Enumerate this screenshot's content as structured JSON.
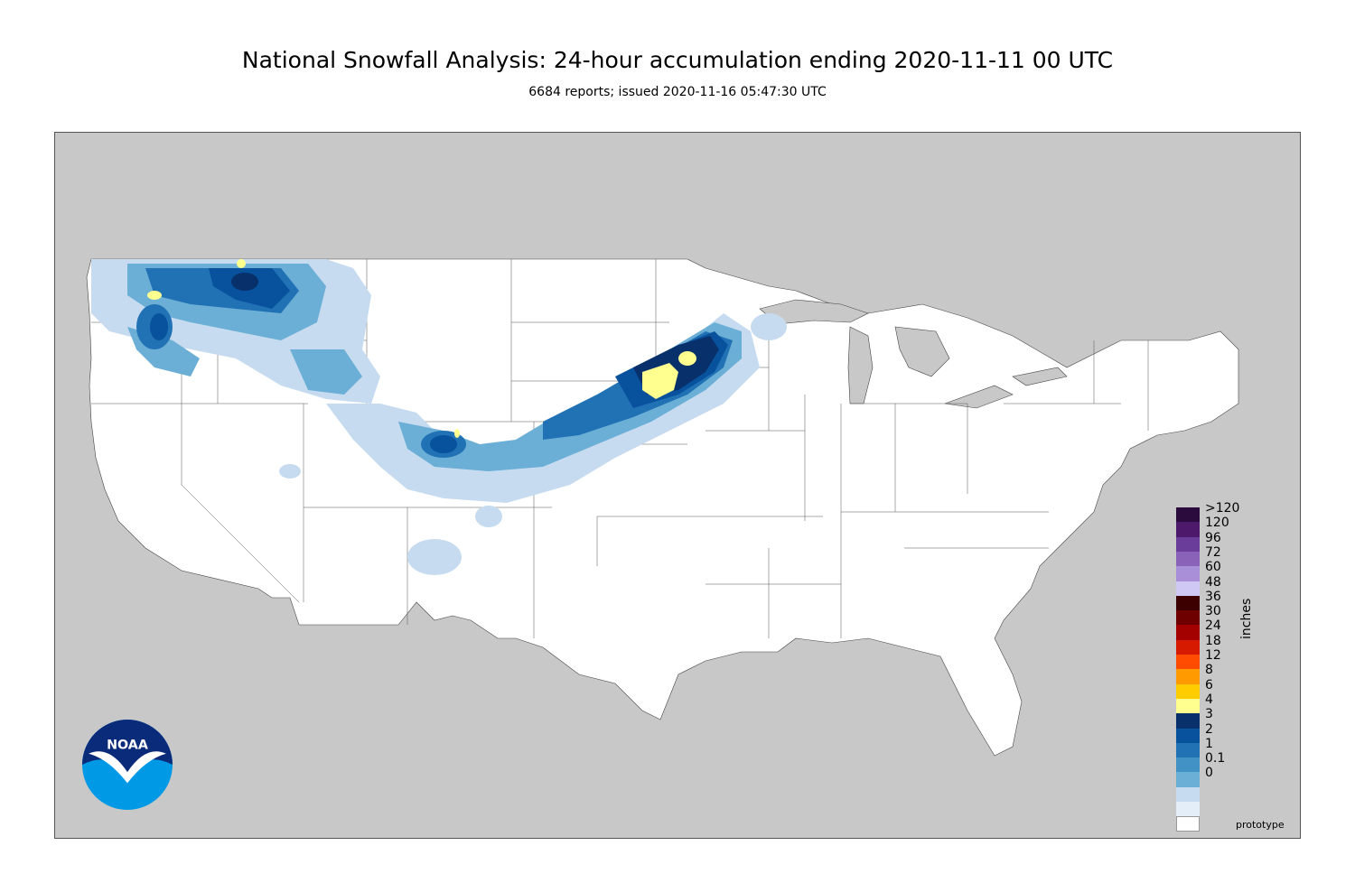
{
  "header": {
    "title": "National Snowfall Analysis: 24-hour accumulation ending 2020-11-11 00 UTC",
    "subtitle": "6684 reports; issued 2020-11-16 05:47:30 UTC"
  },
  "map": {
    "background_color": "#c8c8c8",
    "land_color": "#ffffff",
    "water_color": "#c8c8c8"
  },
  "legend": {
    "units": "inches",
    "bins": [
      {
        "label": ">120",
        "color": "#2b0a3d"
      },
      {
        "label": "120",
        "color": "#4d1a6b"
      },
      {
        "label": "96",
        "color": "#6b3d9a"
      },
      {
        "label": "72",
        "color": "#8a63b8"
      },
      {
        "label": "60",
        "color": "#a98fd8"
      },
      {
        "label": "48",
        "color": "#cfc8f4"
      },
      {
        "label": "36",
        "color": "#3d0000"
      },
      {
        "label": "30",
        "color": "#6e0000"
      },
      {
        "label": "24",
        "color": "#a30000"
      },
      {
        "label": "18",
        "color": "#d51a00"
      },
      {
        "label": "12",
        "color": "#ff4c00"
      },
      {
        "label": "8",
        "color": "#ff9a00"
      },
      {
        "label": "6",
        "color": "#ffcc00"
      },
      {
        "label": "4",
        "color": "#ffff8f"
      },
      {
        "label": "3",
        "color": "#08306b"
      },
      {
        "label": "2",
        "color": "#08519c"
      },
      {
        "label": "1",
        "color": "#2171b5"
      },
      {
        "label": "0.1",
        "color": "#4292c6"
      },
      {
        "label": "0",
        "color": "#6baed6"
      }
    ],
    "bottom_bins": [
      {
        "color": "#c6dbef"
      },
      {
        "color": "#e4eef8"
      },
      {
        "color": "#ffffff"
      }
    ]
  },
  "logo": {
    "text": "NOAA",
    "icon": "noaa-logo-icon"
  },
  "footer": {
    "prototype_label": "prototype"
  }
}
